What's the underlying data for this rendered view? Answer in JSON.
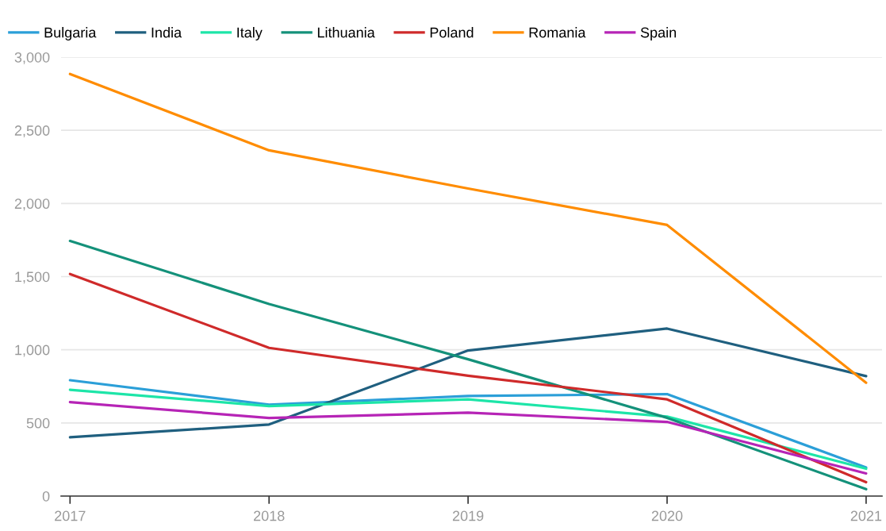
{
  "chart_data": {
    "type": "line",
    "categories": [
      "2017",
      "2018",
      "2019",
      "2020",
      "2021"
    ],
    "series": [
      {
        "name": "Bulgaria",
        "color": "#2b9fd8",
        "values": [
          792,
          625,
          684,
          697,
          195
        ]
      },
      {
        "name": "India",
        "color": "#1f5f7f",
        "values": [
          402,
          489,
          995,
          1145,
          820
        ]
      },
      {
        "name": "Italy",
        "color": "#1de5a8",
        "values": [
          726,
          615,
          661,
          543,
          187
        ]
      },
      {
        "name": "Lithuania",
        "color": "#14917a",
        "values": [
          1744,
          1313,
          935,
          535,
          47
        ]
      },
      {
        "name": "Poland",
        "color": "#cf2a2a",
        "values": [
          1518,
          1013,
          823,
          661,
          95
        ]
      },
      {
        "name": "Romania",
        "color": "#ff8c00",
        "values": [
          2885,
          2363,
          2102,
          1853,
          775
        ]
      },
      {
        "name": "Spain",
        "color": "#b624b6",
        "values": [
          642,
          534,
          570,
          507,
          155
        ]
      }
    ],
    "ylim": [
      0,
      3000
    ],
    "yticks": [
      {
        "value": 0,
        "label": "0"
      },
      {
        "value": 500,
        "label": "500"
      },
      {
        "value": 1000,
        "label": "1,000"
      },
      {
        "value": 1500,
        "label": "1,500"
      },
      {
        "value": 2000,
        "label": "2,000"
      },
      {
        "value": 2500,
        "label": "2,500"
      },
      {
        "value": 3000,
        "label": "3,000"
      }
    ],
    "grid": "y",
    "legend": "top left",
    "marker": "none",
    "line_style": "solid"
  }
}
